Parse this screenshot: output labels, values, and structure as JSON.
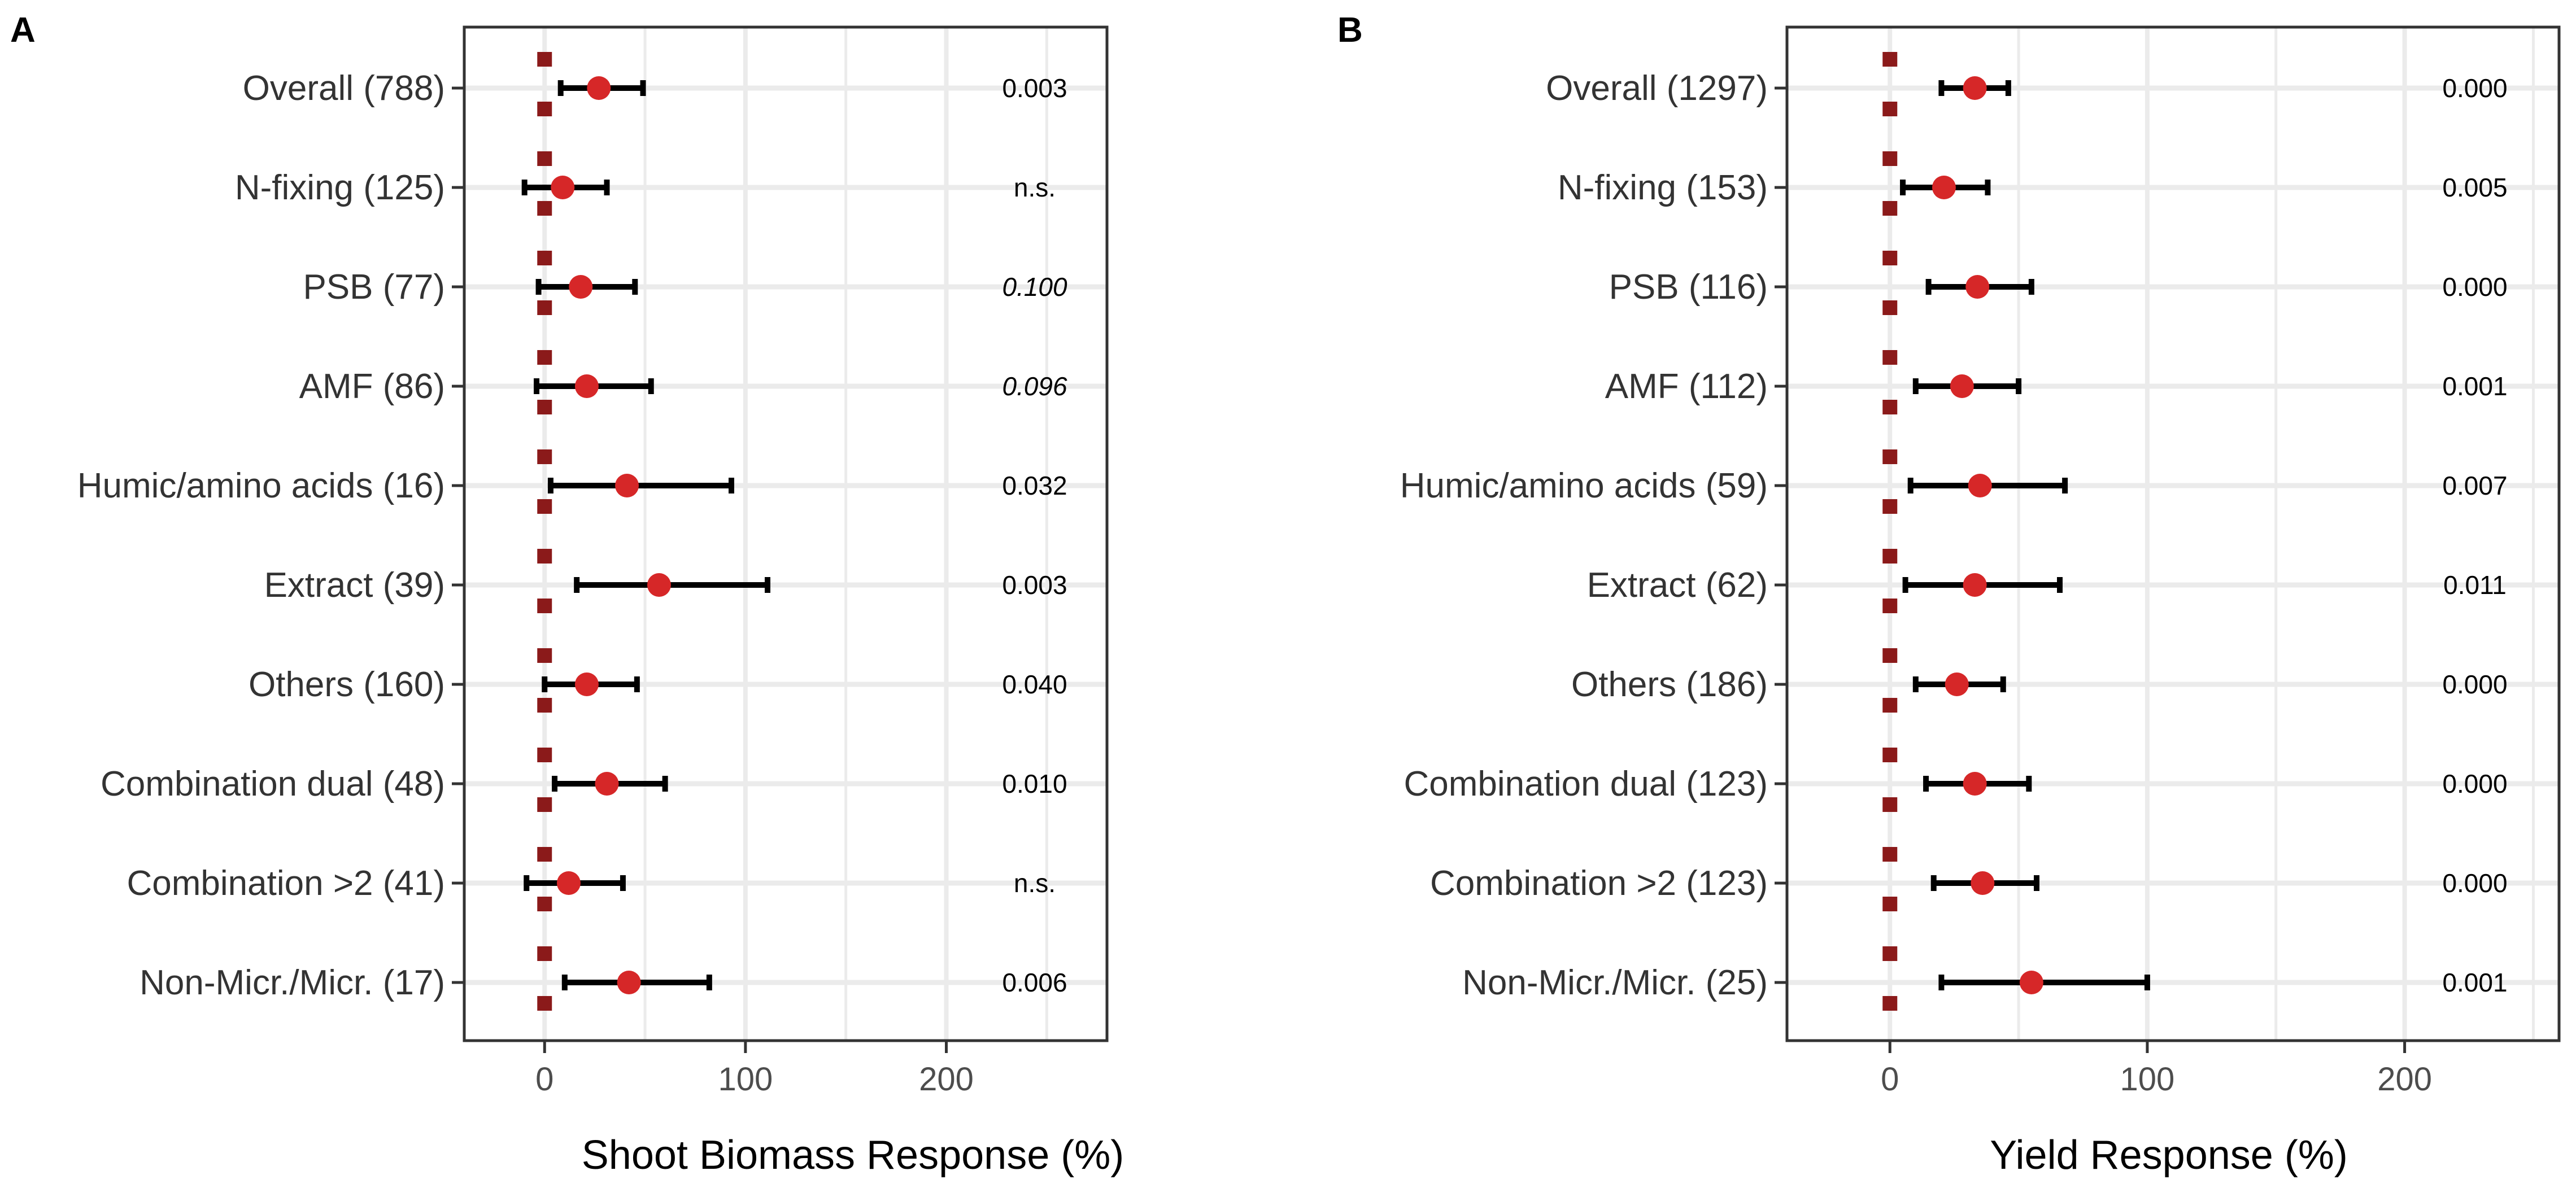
{
  "chart_data": [
    {
      "type": "forest",
      "panel": "A",
      "xlabel": "Shoot Biomass Response (%)",
      "xlim": [
        -40,
        280
      ],
      "xticks": [
        0,
        100,
        200
      ],
      "xtick_labels": [
        "0",
        "100",
        "200"
      ],
      "grid": true,
      "reference_line": 0,
      "categories": [
        "Overall (788)",
        "N-fixing (125)",
        "PSB (77)",
        "AMF (86)",
        "Humic/amino acids (16)",
        "Extract (39)",
        "Others (160)",
        "Combination dual (48)",
        "Combination >2 (41)",
        "Non-Micr./Micr. (17)"
      ],
      "estimates": [
        27,
        9,
        18,
        21,
        41,
        57,
        21,
        31,
        12,
        42
      ],
      "ci_low": [
        8,
        -10,
        -3,
        -4,
        3,
        16,
        0,
        5,
        -9,
        10
      ],
      "ci_high": [
        49,
        31,
        45,
        53,
        93,
        111,
        46,
        60,
        39,
        82
      ],
      "p_values": [
        "0.003",
        "n.s.",
        "0.100",
        "0.096",
        "0.032",
        "0.003",
        "0.040",
        "0.010",
        "n.s.",
        "0.006"
      ],
      "p_italic": [
        false,
        false,
        true,
        true,
        false,
        false,
        false,
        false,
        false,
        false
      ]
    },
    {
      "type": "forest",
      "panel": "B",
      "xlabel": "Yield Response (%)",
      "xlim": [
        -40,
        260
      ],
      "xticks": [
        0,
        100,
        200
      ],
      "xtick_labels": [
        "0",
        "100",
        "200"
      ],
      "grid": true,
      "reference_line": 0,
      "categories": [
        "Overall (1297)",
        "N-fixing (153)",
        "PSB (116)",
        "AMF (112)",
        "Humic/amino acids (59)",
        "Extract (62)",
        "Others (186)",
        "Combination dual (123)",
        "Combination >2 (123)",
        "Non-Micr./Micr. (25)"
      ],
      "estimates": [
        33,
        21,
        34,
        28,
        35,
        33,
        26,
        33,
        36,
        55
      ],
      "ci_low": [
        20,
        5,
        15,
        10,
        8,
        6,
        10,
        14,
        17,
        20
      ],
      "ci_high": [
        46,
        38,
        55,
        50,
        68,
        66,
        44,
        54,
        57,
        100
      ],
      "p_values": [
        "0.000",
        "0.005",
        "0.000",
        "0.001",
        "0.007",
        "0.011",
        "0.000",
        "0.000",
        "0.000",
        "0.001"
      ],
      "p_italic": [
        false,
        false,
        false,
        false,
        false,
        false,
        false,
        false,
        false,
        false
      ]
    }
  ],
  "colors": {
    "point": "#d62728",
    "reference": "#8b1a1a",
    "ci": "#000000",
    "grid": "#ebebeb",
    "frame": "#333333"
  }
}
